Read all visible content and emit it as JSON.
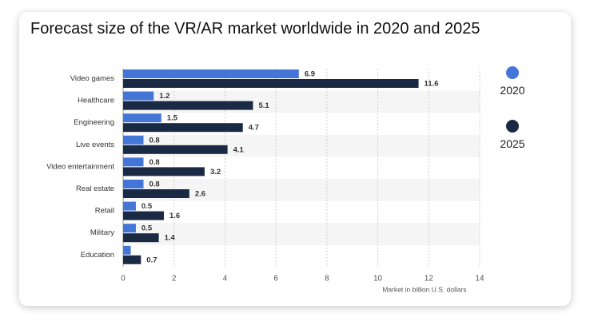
{
  "chart_data": {
    "type": "bar",
    "orientation": "horizontal",
    "title": "Forecast size of the VR/AR market worldwide in 2020 and 2025",
    "xlabel": "Market in billion U.S. dollars",
    "ylabel": "",
    "xlim": [
      0,
      14
    ],
    "xticks": [
      0,
      2,
      4,
      6,
      8,
      10,
      12,
      14
    ],
    "grid": true,
    "legend_position": "right",
    "categories": [
      "Video games",
      "Healthcare",
      "Engineering",
      "Live events",
      "Video entertainment",
      "Real estate",
      "Retail",
      "Military",
      "Education"
    ],
    "series": [
      {
        "name": "2020",
        "color": "#4476d8",
        "values": [
          6.9,
          1.2,
          1.5,
          0.8,
          0.8,
          0.8,
          0.5,
          0.5,
          0.3
        ],
        "labels": [
          "6.9",
          "1.2",
          "1.5",
          "0.8",
          "0.8",
          "0.8",
          "0.5",
          "0.5",
          ""
        ]
      },
      {
        "name": "2025",
        "color": "#1a2a44",
        "values": [
          11.6,
          5.1,
          4.7,
          4.1,
          3.2,
          2.6,
          1.6,
          1.4,
          0.7
        ],
        "labels": [
          "11.6",
          "5.1",
          "4.7",
          "4.1",
          "3.2",
          "2.6",
          "1.6",
          "1.4",
          "0.7"
        ]
      }
    ]
  }
}
